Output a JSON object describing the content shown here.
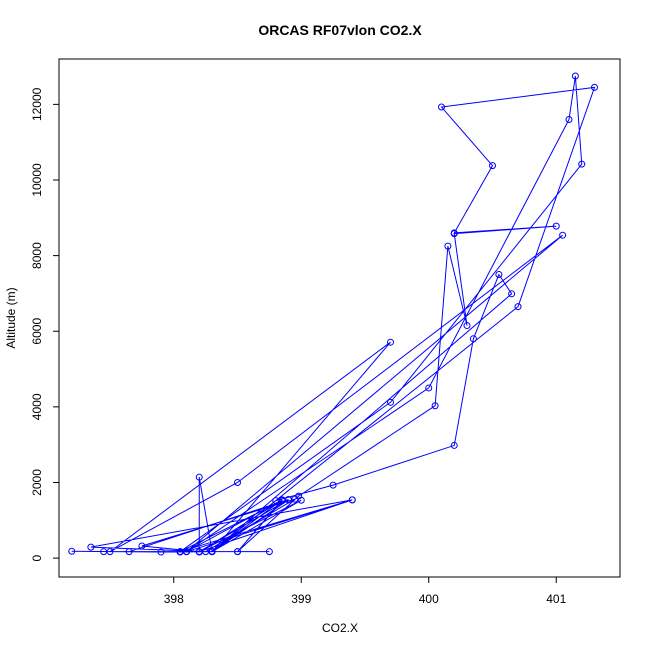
{
  "chart_data": {
    "type": "line",
    "title": "ORCAS RF07vlon CO2.X",
    "xlabel": "CO2.X",
    "ylabel": "Altitude (m)",
    "xlim": [
      397.1,
      401.5
    ],
    "ylim": [
      -500,
      13200
    ],
    "x_ticks": [
      398,
      399,
      400,
      401
    ],
    "y_ticks": [
      0,
      2000,
      4000,
      6000,
      8000,
      10000,
      12000
    ],
    "grid": false,
    "legend": "none",
    "series_color": "#0000ff",
    "markers": "open-circle",
    "points": [
      [
        397.2,
        180
      ],
      [
        397.9,
        160
      ],
      [
        398.05,
        160
      ],
      [
        398.3,
        170
      ],
      [
        398.75,
        170
      ],
      [
        397.45,
        170
      ],
      [
        398.5,
        170
      ],
      [
        398.85,
        1540
      ],
      [
        398.1,
        170
      ],
      [
        397.65,
        170
      ],
      [
        398.9,
        1550
      ],
      [
        398.2,
        170
      ],
      [
        397.75,
        320
      ],
      [
        398.95,
        1560
      ],
      [
        398.25,
        170
      ],
      [
        397.35,
        290
      ],
      [
        399.4,
        1540
      ],
      [
        398.1,
        170
      ],
      [
        398.3,
        170
      ],
      [
        398.85,
        1540
      ],
      [
        398.2,
        160
      ],
      [
        398.2,
        2140
      ],
      [
        398.3,
        180
      ],
      [
        398.9,
        1540
      ],
      [
        398.3,
        170
      ],
      [
        399.0,
        1530
      ],
      [
        398.2,
        170
      ],
      [
        399.4,
        1540
      ],
      [
        398.05,
        170
      ],
      [
        398.85,
        1520
      ],
      [
        398.5,
        170
      ],
      [
        398.98,
        1640
      ],
      [
        400.05,
        4030
      ],
      [
        400.15,
        8250
      ],
      [
        400.3,
        6150
      ],
      [
        400.2,
        8580
      ],
      [
        401.0,
        8780
      ],
      [
        400.2,
        8600
      ],
      [
        400.5,
        10380
      ],
      [
        400.1,
        11930
      ],
      [
        401.3,
        12450
      ],
      [
        400.7,
        6650
      ],
      [
        398.3,
        170
      ],
      [
        398.8,
        1520
      ],
      [
        399.25,
        1930
      ],
      [
        400.2,
        2980
      ],
      [
        400.35,
        5800
      ],
      [
        400.55,
        7500
      ],
      [
        400.65,
        6990
      ],
      [
        398.3,
        170
      ],
      [
        399.7,
        5710
      ],
      [
        397.5,
        170
      ],
      [
        398.5,
        2000
      ],
      [
        401.05,
        8540
      ],
      [
        398.1,
        170
      ],
      [
        400.0,
        4500
      ],
      [
        401.1,
        11600
      ],
      [
        401.15,
        12750
      ],
      [
        401.2,
        10420
      ],
      [
        399.7,
        4120
      ],
      [
        398.05,
        170
      ]
    ]
  }
}
